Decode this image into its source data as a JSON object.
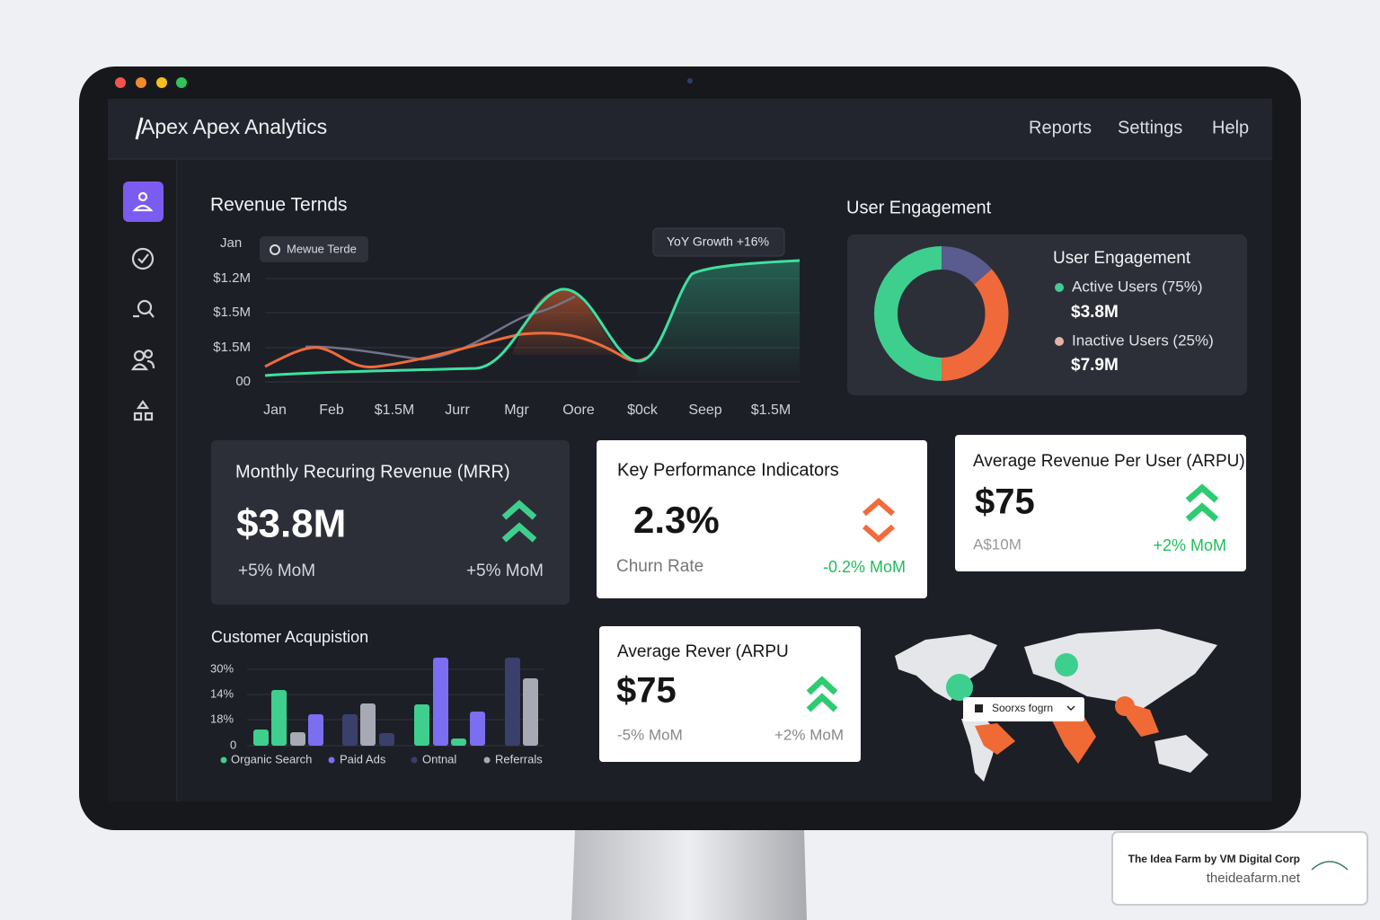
{
  "header": {
    "title": "Apex Apex Analytics",
    "nav": [
      "Reports",
      "Settings",
      "Help"
    ]
  },
  "revenue_trends": {
    "title": "Revenue Ternds",
    "period": "Jan",
    "legend": "Mewue Terde",
    "badge": "YoY Growth +16%",
    "y_labels": [
      "$1.2M",
      "$1.5M",
      "$1.5M",
      "00"
    ],
    "x_labels": [
      "Jan",
      "Feb",
      "$1.5M",
      "Jurr",
      "Mgr",
      "Oore",
      "$0ck",
      "Seep",
      "$1.5M"
    ]
  },
  "user_engagement": {
    "heading": "User Engagement",
    "card_title": "User Engagement",
    "items": [
      {
        "label": "Active Users (75%)",
        "value": "$3.8M"
      },
      {
        "label": "Inactive Users (25%)",
        "value": "$7.9M"
      }
    ]
  },
  "mrr": {
    "title": "Monthly Recuring Revenue (MRR)",
    "value": "$3.8M",
    "left": "+5% MoM",
    "right": "+5% MoM"
  },
  "kpi": {
    "title": "Key Performance Indicators",
    "value": "2.3%",
    "label": "Churn Rate",
    "change": "-0.2% MoM"
  },
  "arpu": {
    "title": "Average Revenue Per User (ARPU)",
    "value": "$75",
    "sub": "A$10M",
    "change": "+2% MoM"
  },
  "customer_acquisition": {
    "title": "Customer Acqupistion",
    "y_labels": [
      "30%",
      "14%",
      "18%",
      "0"
    ],
    "legend": [
      "Organic Search",
      "Paid Ads",
      "Ontnal",
      "Referrals"
    ]
  },
  "arpu_2": {
    "title": "Average Rever (ARPU",
    "value": "$75",
    "left": "-5% MoM",
    "right": "+2% MoM"
  },
  "map": {
    "dropdown": "Soorxs fogrn"
  },
  "watermark": {
    "title": "The Idea Farm by VM Digital Corp",
    "url": "theideafarm.net"
  }
}
